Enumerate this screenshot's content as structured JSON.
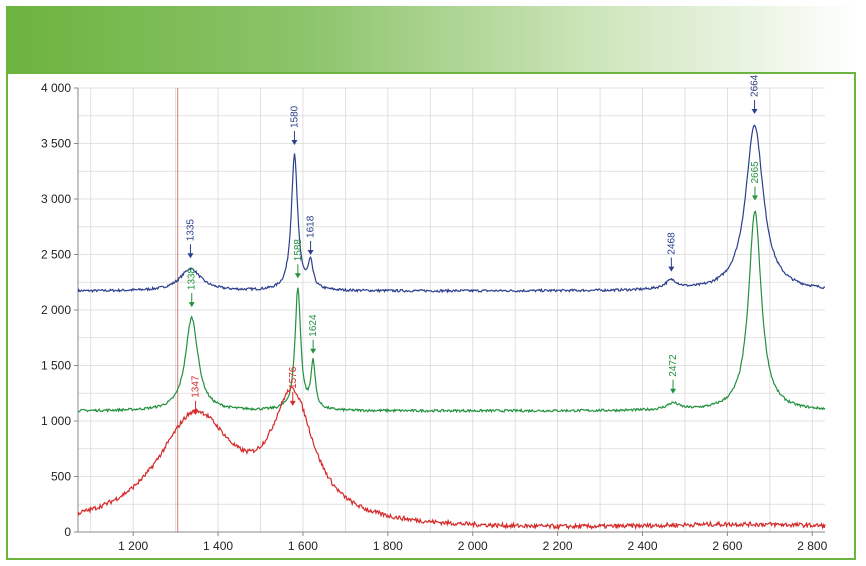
{
  "colors": {
    "header_start": "#6db33f",
    "frame": "#6db33f",
    "grid": "#d9d9d9",
    "marker_line": "#c06060"
  },
  "chart_data": {
    "type": "line",
    "title": "",
    "xlabel": "",
    "ylabel": "",
    "xlim": [
      1070,
      2830
    ],
    "ylim": [
      0,
      4000
    ],
    "x_ticks": [
      1200,
      1400,
      1600,
      1800,
      2000,
      2200,
      2400,
      2600,
      2800
    ],
    "x_tick_labels": [
      "1 200",
      "1 400",
      "1 600",
      "1 800",
      "2 000",
      "2 200",
      "2 400",
      "2 600",
      "2 800"
    ],
    "y_ticks": [
      0,
      500,
      1000,
      1500,
      2000,
      2500,
      3000,
      3500,
      4000
    ],
    "y_tick_labels": [
      "0",
      "500",
      "1 000",
      "1 500",
      "2 000",
      "2 500",
      "3 000",
      "3 500",
      "4 000"
    ],
    "grid": true,
    "vertical_marker_x": 1305,
    "series": [
      {
        "color": "#2c3f8c",
        "baseline": 2170,
        "peaks": [
          {
            "x": 1335,
            "height": 200,
            "width": 30,
            "label": "1335"
          },
          {
            "x": 1580,
            "height": 1220,
            "width": 9,
            "label": "1580"
          },
          {
            "x": 1618,
            "height": 230,
            "width": 7,
            "label": "1618"
          },
          {
            "x": 2468,
            "height": 80,
            "width": 18,
            "label": "2468"
          },
          {
            "x": 2664,
            "height": 1500,
            "width": 25,
            "label": "2664"
          }
        ]
      },
      {
        "color": "#23913e",
        "baseline": 1090,
        "peaks": [
          {
            "x": 1338,
            "height": 840,
            "width": 18,
            "label": "1338"
          },
          {
            "x": 1588,
            "height": 1100,
            "width": 8,
            "label": "1588"
          },
          {
            "x": 1624,
            "height": 420,
            "width": 6,
            "label": "1624"
          },
          {
            "x": 2472,
            "height": 60,
            "width": 18,
            "label": "2472"
          },
          {
            "x": 2665,
            "height": 1800,
            "width": 18,
            "label": "2665"
          }
        ]
      },
      {
        "color": "#d42a2a",
        "baseline": 20,
        "peaks": [
          {
            "x": 1347,
            "height": 1000,
            "width": 110,
            "label": "1347"
          },
          {
            "x": 1576,
            "height": 1080,
            "width": 60,
            "label": "1576"
          }
        ]
      }
    ]
  }
}
